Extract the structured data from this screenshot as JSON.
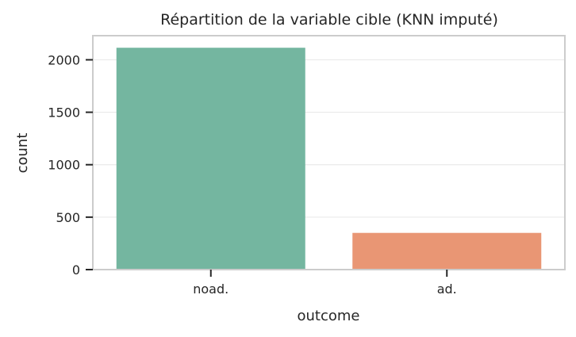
{
  "chart_data": {
    "type": "bar",
    "title": "Répartition de la variable cible (KNN imputé)",
    "xlabel": "outcome",
    "ylabel": "count",
    "categories": [
      "noad.",
      "ad."
    ],
    "values": [
      2115,
      350
    ],
    "colors": [
      "#74b6a0",
      "#e99674"
    ],
    "ylim": [
      0,
      2230
    ],
    "yticks": [
      0,
      500,
      1000,
      1500,
      2000
    ],
    "grid": "y",
    "grid_color": "#e6e6e6",
    "frame_color": "#cccccc"
  }
}
